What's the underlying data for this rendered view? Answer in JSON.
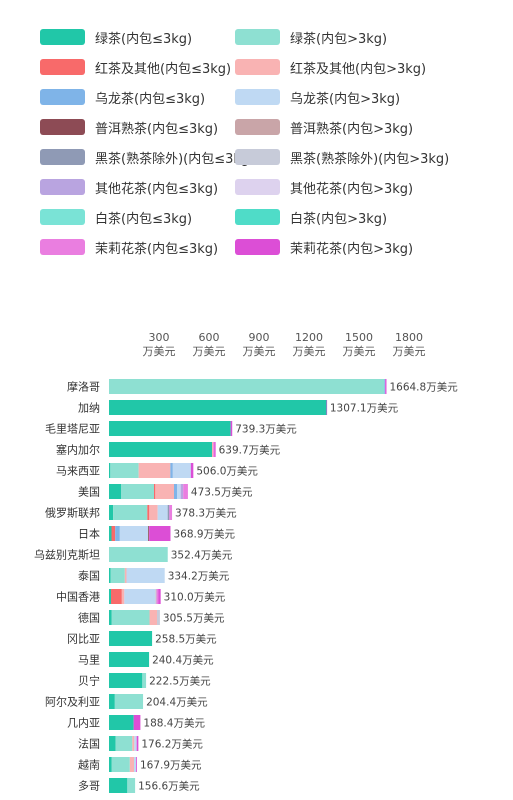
{
  "legend": [
    {
      "label": "绿茶(内包≤3kg)",
      "color": "#21c7a8"
    },
    {
      "label": "绿茶(内包>3kg)",
      "color": "#8ee0d2"
    },
    {
      "label": "红茶及其他(内包≤3kg)",
      "color": "#f86a6a"
    },
    {
      "label": "红茶及其他(内包>3kg)",
      "color": "#f9b3b3"
    },
    {
      "label": "乌龙茶(内包≤3kg)",
      "color": "#7fb4e8"
    },
    {
      "label": "乌龙茶(内包>3kg)",
      "color": "#bfd9f3"
    },
    {
      "label": "普洱熟茶(内包≤3kg)",
      "color": "#8d4b55"
    },
    {
      "label": "普洱熟茶(内包>3kg)",
      "color": "#c9a5a8"
    },
    {
      "label": "黑茶(熟茶除外)(内包≤3kg)",
      "color": "#8f9ab5"
    },
    {
      "label": "黑茶(熟茶除外)(内包>3kg)",
      "color": "#c7cbd9"
    },
    {
      "label": "其他花茶(内包≤3kg)",
      "color": "#b9a4e0"
    },
    {
      "label": "其他花茶(内包>3kg)",
      "color": "#ddd2ee"
    },
    {
      "label": "白茶(内包≤3kg)",
      "color": "#7ae3d6"
    },
    {
      "label": "白茶(内包>3kg)",
      "color": "#4fdcc8"
    },
    {
      "label": "茉莉花茶(内包≤3kg)",
      "color": "#ea7ee0"
    },
    {
      "label": "茉莉花茶(内包>3kg)",
      "color": "#dc4ed6"
    }
  ],
  "chart_data": {
    "type": "bar",
    "orientation": "horizontal",
    "stacked": true,
    "xlim": [
      0,
      1800
    ],
    "x_ticks": [
      300,
      600,
      900,
      1200,
      1500,
      1800
    ],
    "tick_unit": "万美元",
    "value_suffix": "万美元",
    "categories": [
      "摩洛哥",
      "加纳",
      "毛里塔尼亚",
      "塞内加尔",
      "马来西亚",
      "美国",
      "俄罗斯联邦",
      "日本",
      "乌兹别克斯坦",
      "泰国",
      "中国香港",
      "德国",
      "冈比亚",
      "马里",
      "贝宁",
      "阿尔及利亚",
      "几内亚",
      "法国",
      "越南",
      "多哥"
    ],
    "totals": [
      "1664.8",
      "1307.1",
      "739.3",
      "639.7",
      "506.0",
      "473.5",
      "378.3",
      "368.9",
      "352.4",
      "334.2",
      "310.0",
      "305.5",
      "258.5",
      "240.4",
      "222.5",
      "204.4",
      "188.4",
      "176.2",
      "167.9",
      "156.6"
    ],
    "series_colors": [
      "#21c7a8",
      "#8ee0d2",
      "#f86a6a",
      "#f9b3b3",
      "#7fb4e8",
      "#bfd9f3",
      "#8d4b55",
      "#c9a5a8",
      "#8f9ab5",
      "#c7cbd9",
      "#b9a4e0",
      "#ddd2ee",
      "#7ae3d6",
      "#4fdcc8",
      "#ea7ee0",
      "#dc4ed6"
    ],
    "segments": [
      [
        [
          1,
          1652
        ],
        [
          4,
          5
        ],
        [
          15,
          7.8
        ]
      ],
      [
        [
          0,
          1305
        ],
        [
          15,
          2.1
        ]
      ],
      [
        [
          0,
          730
        ],
        [
          15,
          9.3
        ]
      ],
      [
        [
          0,
          618
        ],
        [
          3,
          7
        ],
        [
          14,
          8
        ],
        [
          15,
          6.7
        ]
      ],
      [
        [
          0,
          8
        ],
        [
          1,
          170
        ],
        [
          3,
          190
        ],
        [
          4,
          15
        ],
        [
          5,
          108
        ],
        [
          15,
          15
        ]
      ],
      [
        [
          0,
          72
        ],
        [
          1,
          198
        ],
        [
          2,
          8
        ],
        [
          3,
          112
        ],
        [
          4,
          18
        ],
        [
          5,
          22
        ],
        [
          10,
          15
        ],
        [
          14,
          28.5
        ]
      ],
      [
        [
          0,
          25
        ],
        [
          1,
          205
        ],
        [
          2,
          12
        ],
        [
          3,
          50
        ],
        [
          5,
          60
        ],
        [
          8,
          10
        ],
        [
          14,
          16.3
        ]
      ],
      [
        [
          0,
          15
        ],
        [
          2,
          22
        ],
        [
          4,
          28
        ],
        [
          5,
          170
        ],
        [
          6,
          6
        ],
        [
          15,
          127.9
        ]
      ],
      [
        [
          1,
          352.4
        ]
      ],
      [
        [
          0,
          10
        ],
        [
          1,
          85
        ],
        [
          3,
          10
        ],
        [
          5,
          229.2
        ]
      ],
      [
        [
          0,
          12
        ],
        [
          2,
          65
        ],
        [
          3,
          15
        ],
        [
          5,
          185
        ],
        [
          9,
          8
        ],
        [
          14,
          10
        ],
        [
          15,
          15
        ]
      ],
      [
        [
          0,
          15
        ],
        [
          1,
          228
        ],
        [
          3,
          45
        ],
        [
          9,
          17.5
        ]
      ],
      [
        [
          0,
          258.5
        ]
      ],
      [
        [
          0,
          240.4
        ]
      ],
      [
        [
          0,
          200
        ],
        [
          1,
          22.5
        ]
      ],
      [
        [
          0,
          35
        ],
        [
          1,
          169.4
        ]
      ],
      [
        [
          0,
          148
        ],
        [
          15,
          40.4
        ]
      ],
      [
        [
          0,
          40
        ],
        [
          1,
          100
        ],
        [
          3,
          12
        ],
        [
          5,
          14
        ],
        [
          15,
          10.2
        ]
      ],
      [
        [
          0,
          15
        ],
        [
          1,
          110
        ],
        [
          3,
          25
        ],
        [
          5,
          12.9
        ],
        [
          15,
          5
        ]
      ],
      [
        [
          0,
          110
        ],
        [
          1,
          46.6
        ]
      ]
    ]
  }
}
